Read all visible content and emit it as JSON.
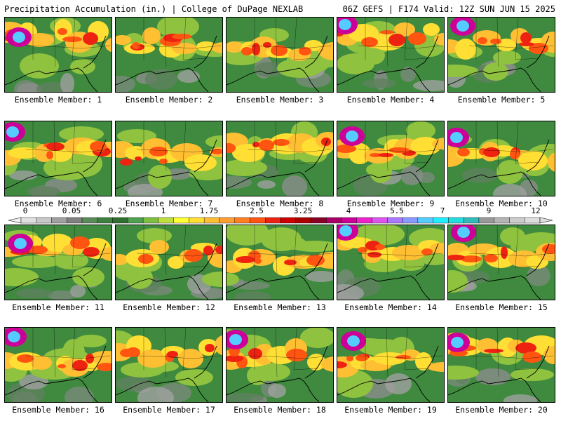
{
  "header": {
    "left": "Precipitation Accumulation (in.) | College of DuPage NEXLAB",
    "right": "06Z GEFS | F174 Valid: 12Z SUN JUN 15 2025"
  },
  "colorbar": {
    "labels": [
      "0",
      "0.05",
      "0.25",
      "1",
      "1.75",
      "2.5",
      "3.25",
      "4",
      "5.5",
      "7",
      "9",
      "12"
    ],
    "colors": [
      "#e0e0e0",
      "#c8c8c8",
      "#a0a0a0",
      "#808080",
      "#5a8c5a",
      "#3f7f3f",
      "#2f6f2f",
      "#4fa04f",
      "#7fbf3f",
      "#bfdf3f",
      "#ffff33",
      "#ffdf33",
      "#ffbf33",
      "#ff9f33",
      "#ff7f22",
      "#ff5511",
      "#ee2211",
      "#cc0000",
      "#aa0000",
      "#880022",
      "#aa0066",
      "#cc0099",
      "#ee22cc",
      "#dd55ee",
      "#aa77ff",
      "#8899ff",
      "#55ccff",
      "#22eeff",
      "#22dddd",
      "#33bbbb",
      "#999999",
      "#b4b4b4",
      "#cccccc",
      "#dddddd"
    ]
  },
  "members": [
    {
      "label": "Ensemble Member: 1"
    },
    {
      "label": "Ensemble Member: 2"
    },
    {
      "label": "Ensemble Member: 3"
    },
    {
      "label": "Ensemble Member: 4"
    },
    {
      "label": "Ensemble Member: 5"
    },
    {
      "label": "Ensemble Member: 6"
    },
    {
      "label": "Ensemble Member: 7"
    },
    {
      "label": "Ensemble Member: 8"
    },
    {
      "label": "Ensemble Member: 9"
    },
    {
      "label": "Ensemble Member: 10"
    },
    {
      "label": "Ensemble Member: 11"
    },
    {
      "label": "Ensemble Member: 12"
    },
    {
      "label": "Ensemble Member: 13"
    },
    {
      "label": "Ensemble Member: 14"
    },
    {
      "label": "Ensemble Member: 15"
    },
    {
      "label": "Ensemble Member: 16"
    },
    {
      "label": "Ensemble Member: 17"
    },
    {
      "label": "Ensemble Member: 18"
    },
    {
      "label": "Ensemble Member: 19"
    },
    {
      "label": "Ensemble Member: 20"
    }
  ]
}
